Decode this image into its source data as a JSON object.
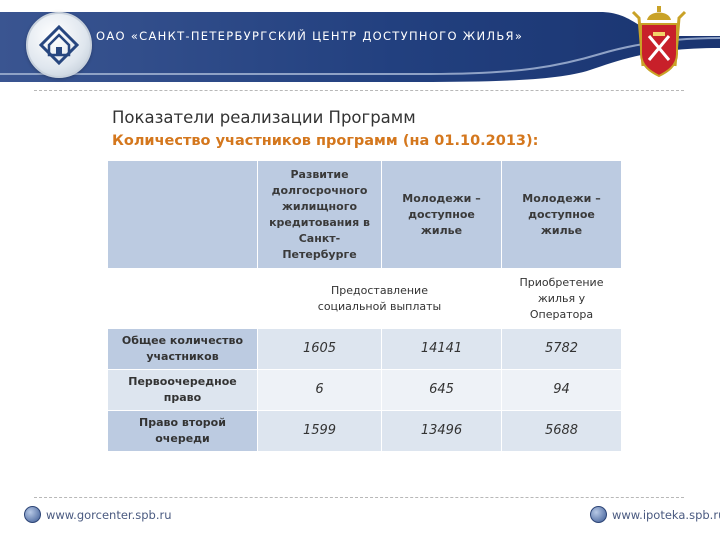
{
  "header": {
    "org_name": "ОАО «САНКТ-ПЕТЕРБУРГСКИЙ ЦЕНТР ДОСТУПНОГО ЖИЛЬЯ»",
    "band_color": "#1e3a78"
  },
  "slide": {
    "title": "Показатели реализации Программ",
    "subtitle": "Количество участников программ (на 01.10.2013):"
  },
  "table": {
    "columns": [
      "Развитие долгосрочного жилищного кредитования в Санкт-Петербурге",
      "Молодежи – доступное жилье",
      "Молодежи – доступное жилье"
    ],
    "sub_headers": {
      "merged": "Предоставление социальной выплаты",
      "last": "Приобретение жилья у Оператора"
    },
    "rows": [
      {
        "label": "Общее количество участников",
        "values": [
          "1605",
          "14141",
          "5782"
        ]
      },
      {
        "label": "Первоочередное право",
        "values": [
          "6",
          "645",
          "94"
        ]
      },
      {
        "label": "Право второй очереди",
        "values": [
          "1599",
          "13496",
          "5688"
        ]
      }
    ]
  },
  "footer": {
    "left_link": "www.gorcenter.spb.ru",
    "right_link": "www.ipoteka.spb.ru"
  }
}
